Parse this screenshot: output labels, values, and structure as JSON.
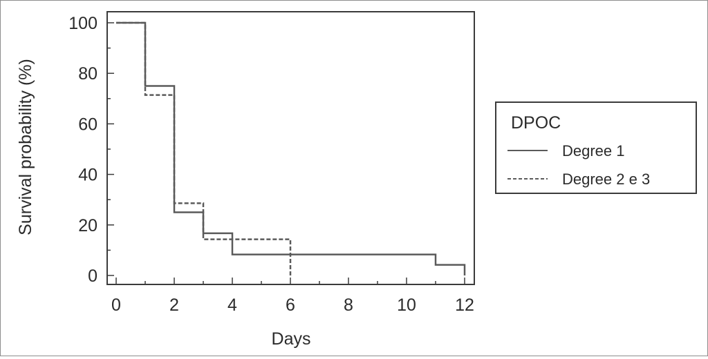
{
  "chart_data": {
    "type": "line",
    "title": "",
    "xlabel": "Days",
    "ylabel": "Survival probability (%)",
    "xlim": [
      0,
      12
    ],
    "ylim": [
      0,
      100
    ],
    "xticks": [
      0,
      2,
      4,
      6,
      8,
      10,
      12
    ],
    "yticks": [
      0,
      20,
      40,
      60,
      80,
      100
    ],
    "step": true,
    "grid": false,
    "legend": {
      "title": "DPOC",
      "placement": "right"
    },
    "series": [
      {
        "name": "Degree 1",
        "line_style": "solid",
        "x": [
          0,
          1,
          2,
          3,
          4,
          11,
          12
        ],
        "y": [
          100,
          75,
          25,
          16.7,
          8.3,
          4.2,
          0
        ]
      },
      {
        "name": "Degree 2 e 3",
        "line_style": "dashed",
        "x": [
          0,
          1,
          2,
          3,
          6
        ],
        "y": [
          100,
          71.4,
          28.6,
          14.3,
          0
        ]
      }
    ],
    "colors": {
      "line": "#5a5a5a",
      "text": "#2b2b2b",
      "axis": "#3a3a3a"
    }
  }
}
